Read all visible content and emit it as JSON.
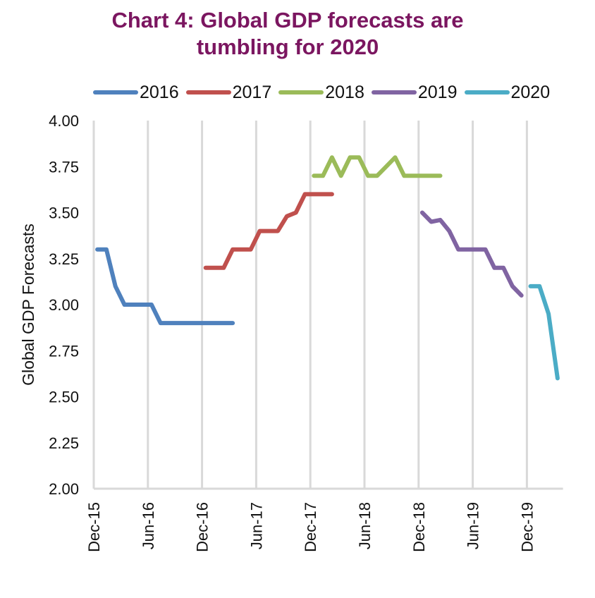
{
  "chart_data": {
    "type": "line",
    "title": "Chart 4: Global GDP forecasts are tumbling for 2020",
    "title_lines": [
      "Chart 4: Global GDP forecasts are",
      "tumbling for 2020"
    ],
    "xlabel": "",
    "ylabel": "Global GDP Forecasts",
    "ylim": [
      2.0,
      4.0
    ],
    "yticks": [
      "4.00",
      "3.75",
      "3.50",
      "3.25",
      "3.00",
      "2.75",
      "2.50",
      "2.25",
      "2.00"
    ],
    "ytick_values": [
      4.0,
      3.75,
      3.5,
      3.25,
      3.0,
      2.75,
      2.5,
      2.25,
      2.0
    ],
    "xlim": [
      "Dec-15",
      "Apr-20"
    ],
    "xlim_months": [
      0,
      52
    ],
    "xticks": [
      "Dec-15",
      "Jun-16",
      "Dec-16",
      "Jun-17",
      "Dec-17",
      "Jun-18",
      "Dec-18",
      "Jun-19",
      "Dec-19"
    ],
    "xtick_months": [
      0,
      6,
      12,
      18,
      24,
      30,
      36,
      42,
      48
    ],
    "x_unit": "months since Dec-15",
    "grid": "vertical",
    "legend_position": "top",
    "series": [
      {
        "name": "2016",
        "color": "#4f81bd",
        "x": [
          0.4,
          1.4,
          2.4,
          3.4,
          4.4,
          5.4,
          6.4,
          7.4,
          8.4,
          9.4,
          10.4,
          11.4,
          12.4,
          13.4,
          14.4,
          15.4
        ],
        "values": [
          3.3,
          3.3,
          3.1,
          3.0,
          3.0,
          3.0,
          3.0,
          2.9,
          2.9,
          2.9,
          2.9,
          2.9,
          2.9,
          2.9,
          2.9,
          2.9
        ]
      },
      {
        "name": "2017",
        "color": "#c0504d",
        "x": [
          12.4,
          13.4,
          14.4,
          15.4,
          16.4,
          17.4,
          18.4,
          19.4,
          20.4,
          21.4,
          22.4,
          23.4,
          24.4,
          25.4,
          26.4
        ],
        "values": [
          3.2,
          3.2,
          3.2,
          3.3,
          3.3,
          3.3,
          3.4,
          3.4,
          3.4,
          3.48,
          3.5,
          3.6,
          3.6,
          3.6,
          3.6
        ]
      },
      {
        "name": "2018",
        "color": "#9bbb59",
        "x": [
          24.4,
          25.4,
          26.4,
          27.4,
          28.4,
          29.4,
          30.4,
          31.4,
          32.4,
          33.4,
          34.4,
          35.4,
          36.4,
          37.4,
          38.4
        ],
        "values": [
          3.7,
          3.7,
          3.8,
          3.7,
          3.8,
          3.8,
          3.7,
          3.7,
          3.75,
          3.8,
          3.7,
          3.7,
          3.7,
          3.7,
          3.7
        ]
      },
      {
        "name": "2019",
        "color": "#8064a2",
        "x": [
          36.4,
          37.4,
          38.4,
          39.4,
          40.4,
          41.4,
          42.4,
          43.4,
          44.4,
          45.4,
          46.4,
          47.4
        ],
        "values": [
          3.5,
          3.45,
          3.46,
          3.4,
          3.3,
          3.3,
          3.3,
          3.3,
          3.2,
          3.2,
          3.1,
          3.05
        ]
      },
      {
        "name": "2020",
        "color": "#4bacc6",
        "x": [
          48.4,
          49.4,
          50.4,
          51.4
        ],
        "values": [
          3.1,
          3.1,
          2.95,
          2.6
        ]
      }
    ]
  }
}
